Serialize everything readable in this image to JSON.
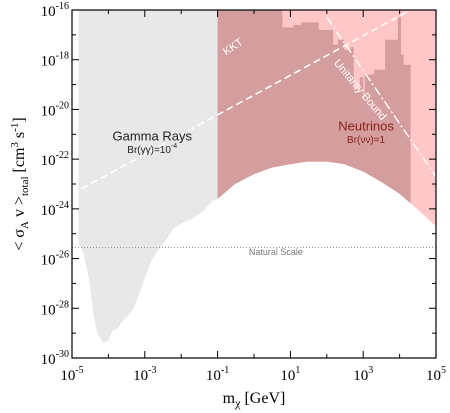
{
  "chart_data": {
    "type": "area",
    "xscale": "log",
    "yscale": "log",
    "xlim": [
      1e-05,
      100000.0
    ],
    "ylim": [
      1e-30,
      1e-16
    ],
    "x_ticks": [
      {
        "base": "10",
        "exp": "-5"
      },
      {
        "base": "10",
        "exp": "-3"
      },
      {
        "base": "10",
        "exp": "-1"
      },
      {
        "base": "10",
        "exp": "1"
      },
      {
        "base": "10",
        "exp": "3"
      },
      {
        "base": "10",
        "exp": "5"
      }
    ],
    "y_ticks": [
      {
        "base": "10",
        "exp": "-30"
      },
      {
        "base": "10",
        "exp": "-28"
      },
      {
        "base": "10",
        "exp": "-26"
      },
      {
        "base": "10",
        "exp": "-24"
      },
      {
        "base": "10",
        "exp": "-22"
      },
      {
        "base": "10",
        "exp": "-20"
      },
      {
        "base": "10",
        "exp": "-18"
      },
      {
        "base": "10",
        "exp": "-16"
      }
    ],
    "xlabel": {
      "main": "m",
      "sub": "χ",
      "unit": " [GeV]"
    },
    "ylabel": {
      "open": "< σ",
      "sub1": "A",
      "mid": " v >",
      "sub2": "total",
      "unit_open": "  [cm",
      "sup1": "3",
      "unit_mid": " s",
      "sup2": "-1",
      "unit_close": "]"
    },
    "regions": [
      {
        "name": "Gamma Rays",
        "label_sub": "Br(γγ)=10",
        "label_sup": "-4",
        "color": "#e8e8e8",
        "boundary": [
          [
            1.5e-05,
            -25.4
          ],
          [
            2e-05,
            -25.7
          ],
          [
            3e-05,
            -26.9
          ],
          [
            4e-05,
            -28.4
          ],
          [
            5e-05,
            -29.0
          ],
          [
            7e-05,
            -29.4
          ],
          [
            0.0001,
            -29.3
          ],
          [
            0.00013,
            -28.9
          ],
          [
            0.00018,
            -28.8
          ],
          [
            0.00025,
            -28.5
          ],
          [
            0.00035,
            -28.3
          ],
          [
            0.0005,
            -28.0
          ],
          [
            0.0007,
            -27.4
          ],
          [
            0.001,
            -26.8
          ],
          [
            0.0015,
            -26.1
          ],
          [
            0.0025,
            -25.6
          ],
          [
            0.004,
            -25.2
          ],
          [
            0.006,
            -24.8
          ],
          [
            0.01,
            -24.6
          ],
          [
            0.02,
            -24.4
          ],
          [
            0.04,
            -24.1
          ],
          [
            0.07,
            -23.7
          ],
          [
            0.1,
            -23.6
          ]
        ]
      },
      {
        "name": "Neutrinos",
        "label_sub": "Br(νν)=1",
        "color": "#ffc7c7",
        "boundary": [
          [
            0.1,
            -23.6
          ],
          [
            0.3,
            -23.0
          ],
          [
            1,
            -22.6
          ],
          [
            3,
            -22.35
          ],
          [
            10,
            -22.2
          ],
          [
            30,
            -22.1
          ],
          [
            100,
            -22.1
          ],
          [
            300,
            -22.2
          ],
          [
            1000,
            -22.5
          ],
          [
            3000,
            -22.9
          ],
          [
            10000,
            -23.4
          ],
          [
            30000,
            -24.0
          ],
          [
            100000.0,
            -24.7
          ]
        ]
      },
      {
        "name": "overlap",
        "color": "#d49e9e",
        "top_boundary": [
          [
            0.1,
            -16.0
          ],
          [
            6.0,
            -16.0
          ],
          [
            6.0,
            -16.7
          ],
          [
            12,
            -16.7
          ],
          [
            12,
            -16.6
          ],
          [
            20,
            -16.6
          ],
          [
            20,
            -16.5
          ],
          [
            60,
            -16.5
          ],
          [
            60,
            -16.8
          ],
          [
            150,
            -16.8
          ],
          [
            150,
            -17.4
          ],
          [
            200,
            -17.4
          ],
          [
            200,
            -17.2
          ],
          [
            300,
            -17.2
          ],
          [
            300,
            -17.6
          ],
          [
            450,
            -17.6
          ],
          [
            450,
            -17.5
          ],
          [
            550,
            -17.5
          ],
          [
            550,
            -19.2
          ],
          [
            800,
            -19.2
          ],
          [
            800,
            -18.7
          ],
          [
            1000,
            -18.7
          ],
          [
            1000,
            -19.5
          ],
          [
            1100,
            -19.5
          ],
          [
            1100,
            -18.6
          ],
          [
            2000,
            -18.6
          ],
          [
            2000,
            -18.4
          ],
          [
            4000,
            -18.4
          ],
          [
            4000,
            -17.2
          ],
          [
            9000,
            -17.2
          ],
          [
            9000,
            -16.3
          ],
          [
            11000,
            -16.3
          ],
          [
            11000,
            -17.8
          ],
          [
            13000,
            -17.8
          ],
          [
            13000,
            -18.2
          ],
          [
            20000,
            -18.2
          ]
        ]
      }
    ],
    "lines": [
      {
        "name": "KKT",
        "style": "dashed",
        "color": "#ffffff",
        "points": [
          [
            1e-05,
            -23.4
          ],
          [
            20000.0,
            -16.0
          ]
        ]
      },
      {
        "name": "Unitarity Bound",
        "style": "dash-dot",
        "color": "#ffffff",
        "points": [
          [
            100,
            -16.3
          ],
          [
            100000.0,
            -22.7
          ]
        ]
      },
      {
        "name": "Natural Scale",
        "style": "dotted",
        "color": "#888888",
        "points": [
          [
            1e-05,
            -25.55
          ],
          [
            100000.0,
            -25.55
          ]
        ]
      }
    ],
    "annotations": [
      {
        "text": "KKT",
        "x": 0.3,
        "y": -17.6,
        "angle": -34
      },
      {
        "text": "Unitarity Bound",
        "x": 700,
        "y": -19.3,
        "angle": 50
      },
      {
        "text": "Natural Scale",
        "x": 4,
        "y": -25.85,
        "angle": 0
      }
    ]
  }
}
